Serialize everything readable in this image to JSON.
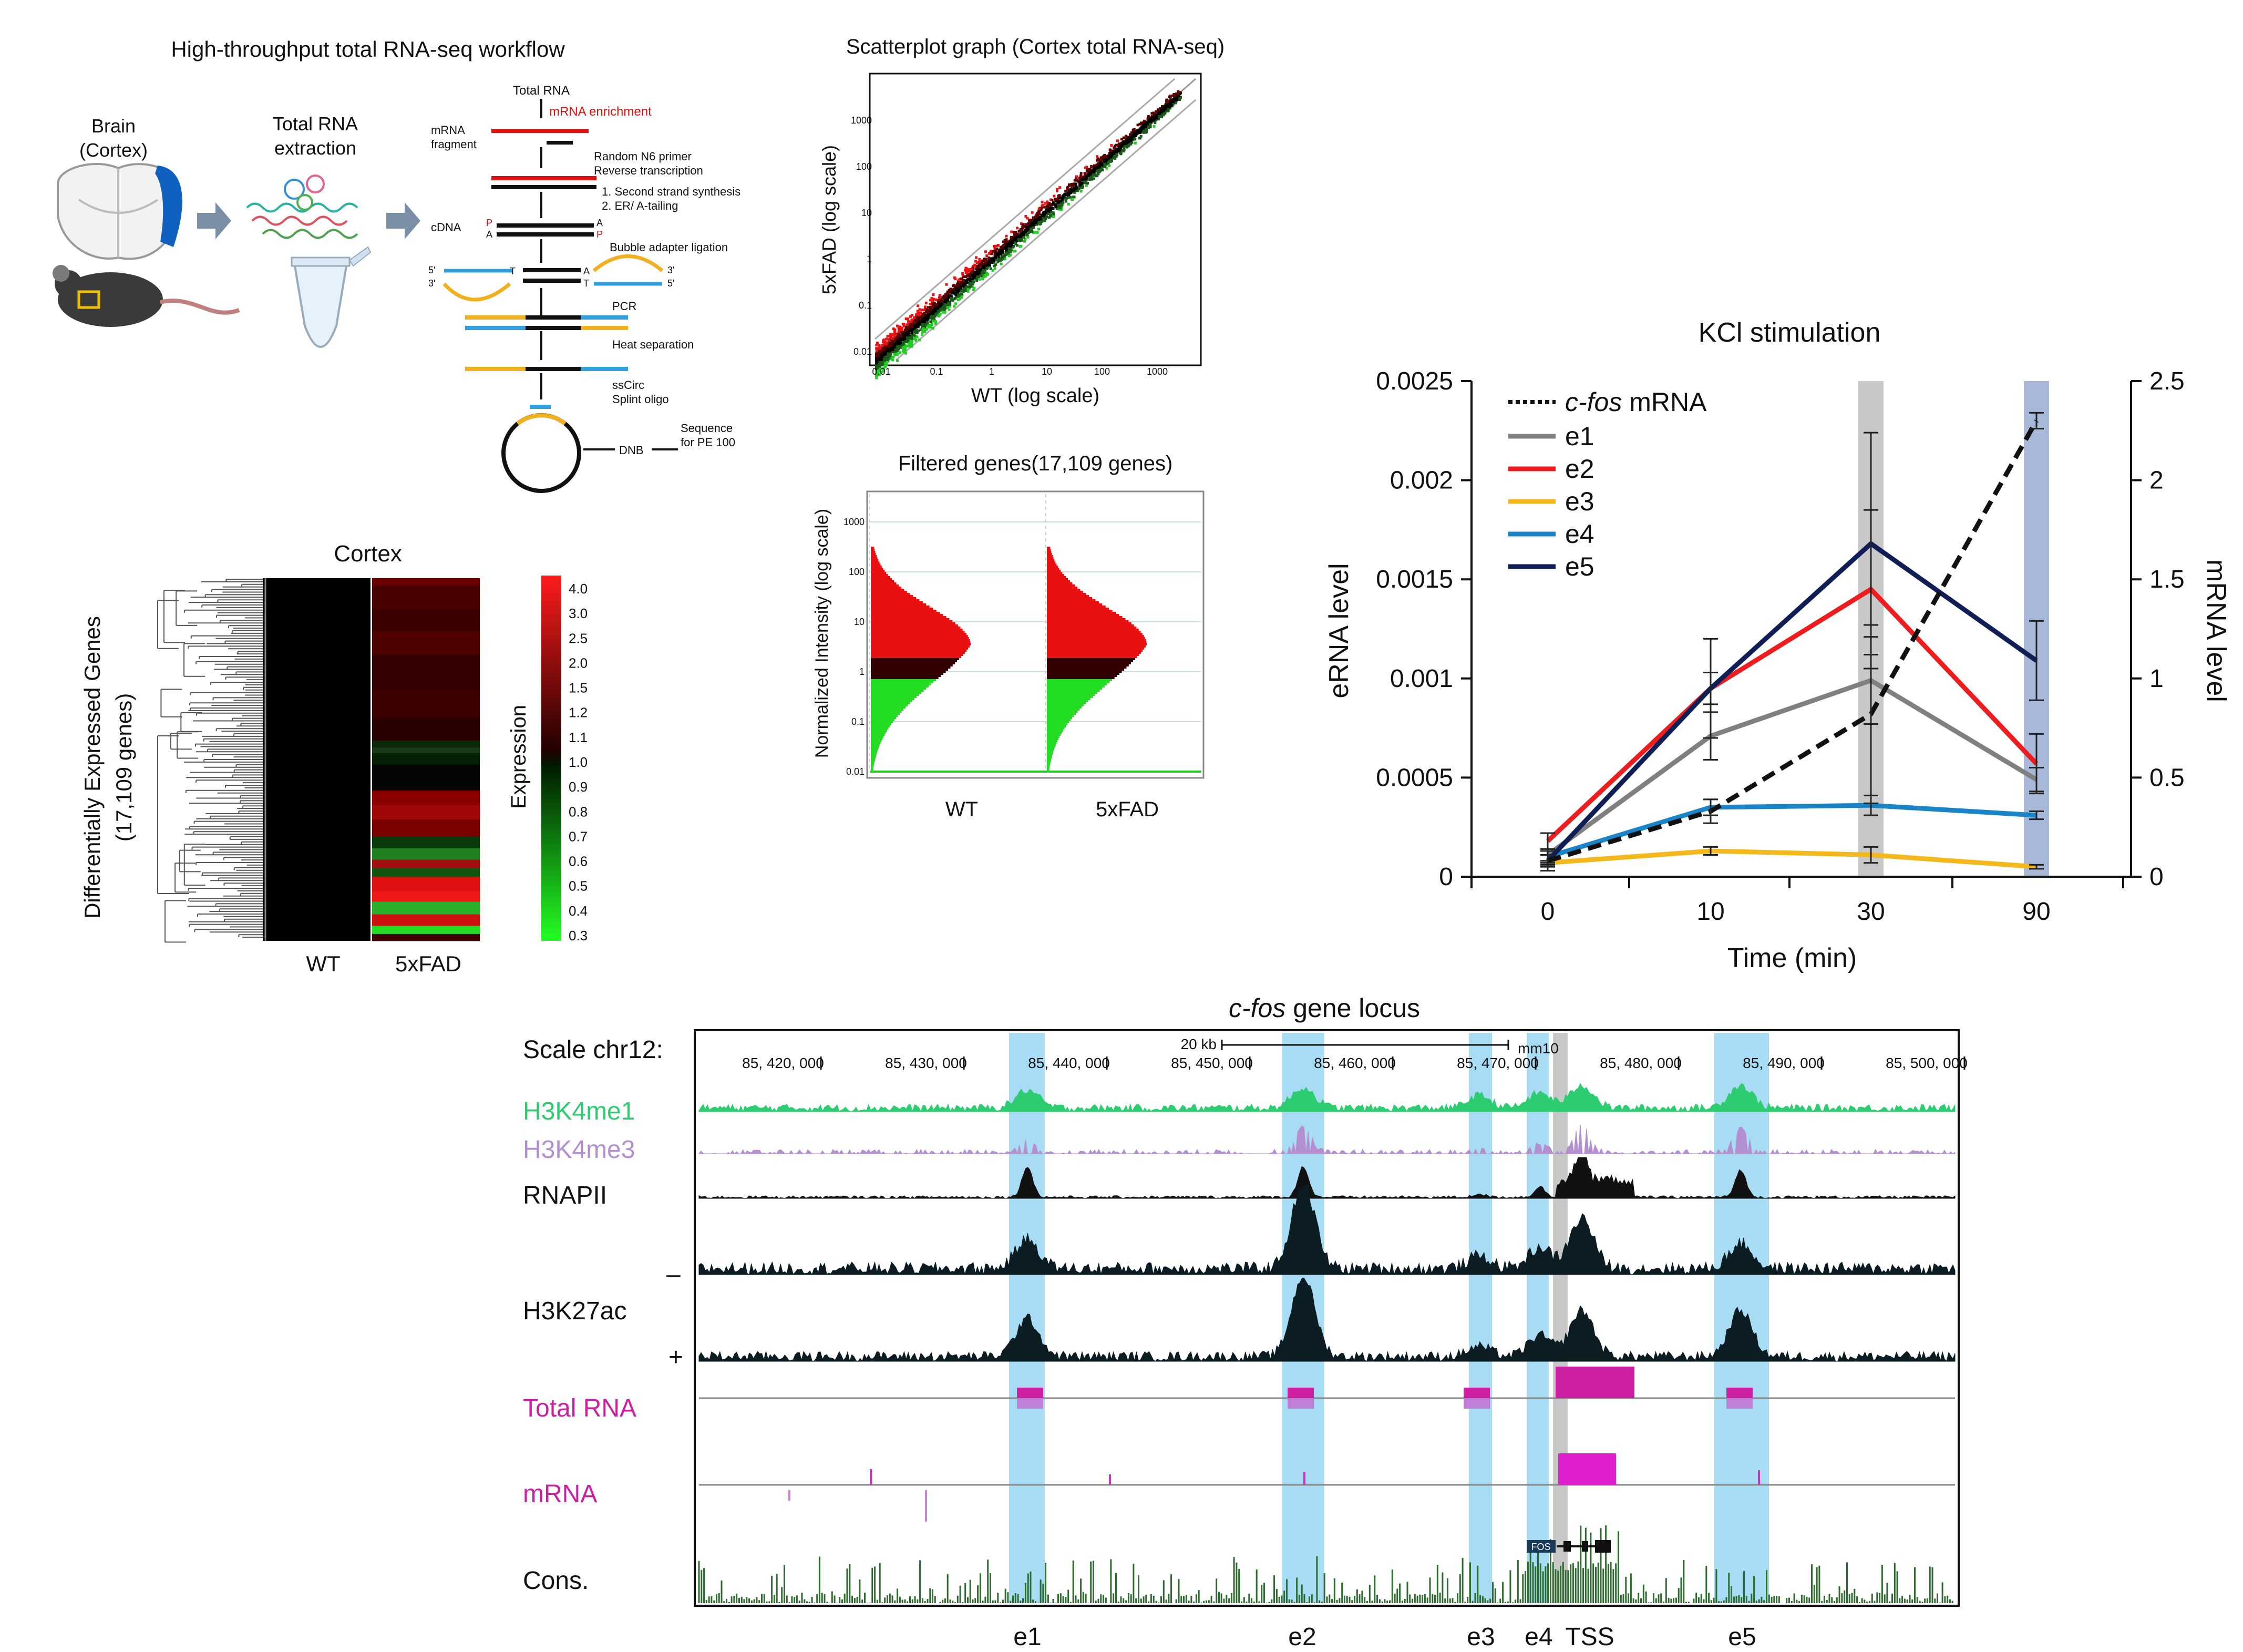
{
  "workflow": {
    "title": "High-throughput total RNA-seq workflow",
    "brain_label": [
      "Brain",
      "(Cortex)"
    ],
    "extraction_label": [
      "Total RNA",
      "extraction"
    ],
    "steps": {
      "total_rna": "Total RNA",
      "mrna_enrichment": "mRNA enrichment",
      "mrna_fragment": [
        "mRNA",
        "fragment"
      ],
      "random_primer": [
        "Random N6 primer",
        "Reverse transcription"
      ],
      "second_strand": [
        "1. Second strand synthesis",
        "2. ER/ A-tailing"
      ],
      "cdna": "cDNA",
      "bubble": "Bubble adapter ligation",
      "pcr": "PCR",
      "heat": "Heat separation",
      "sscirc": [
        "ssCirc",
        "Splint oligo"
      ],
      "dnb": "DNB",
      "sequence": [
        "Sequence",
        "for PE 100"
      ],
      "p": "P",
      "a": "A",
      "t": "T",
      "five_prime": "5'",
      "three_prime": "3'"
    }
  },
  "scatter": {
    "title": "Scatterplot graph (Cortex total RNA-seq)",
    "xlabel": "WT (log scale)",
    "ylabel": "5xFAD  (log scale)",
    "ticks_x": [
      "0.01",
      "0.1",
      "1",
      "10",
      "100",
      "1000"
    ],
    "ticks_y": [
      "0.01",
      "0.1",
      "1",
      "10",
      "100",
      "1000"
    ]
  },
  "filtered": {
    "title": "Filtered genes(17,109 genes)",
    "ylabel": "Normalized Intensity (log scale)",
    "groups": [
      "WT",
      "5xFAD"
    ],
    "ticks_y": [
      "0.01",
      "0.1",
      "1",
      "10",
      "100",
      "1000"
    ]
  },
  "heatmap": {
    "title": "Cortex",
    "ylabel": [
      "Differentially Expressed Genes",
      "(17,109 genes)"
    ],
    "columns": [
      "WT",
      "5xFAD"
    ],
    "scale_label": "Expression",
    "scale_ticks": [
      "4.0",
      "3.0",
      "2.5",
      "2.0",
      "1.5",
      "1.2",
      "1.1",
      "1.0",
      "0.9",
      "0.8",
      "0.7",
      "0.6",
      "0.5",
      "0.4",
      "0.3"
    ]
  },
  "chart_data": {
    "type": "line",
    "title": "KCl stimulation",
    "xlabel": "Time (min)",
    "ylabel": "eRNA level",
    "y2label": "mRNA level",
    "x": [
      0,
      10,
      30,
      90
    ],
    "ylim": [
      0,
      0.0025
    ],
    "y2lim": [
      0,
      2.5
    ],
    "yticks": [
      "0",
      "0.0005",
      "0.001",
      "0.0015",
      "0.002",
      "0.0025"
    ],
    "y2ticks": [
      "0",
      "0.5",
      "1",
      "1.5",
      "2",
      "2.5"
    ],
    "xticks": [
      "0",
      "10",
      "30",
      "90"
    ],
    "highlight_x": [
      30,
      90
    ],
    "legend_position": "top-left",
    "series": [
      {
        "name": "c-fos mRNA",
        "name_italic": "c-fos",
        "name_rest": " mRNA",
        "axis": "right",
        "color": "#111111",
        "dashed": true,
        "values": [
          0.08,
          0.33,
          0.82,
          2.3
        ],
        "err": [
          0.05,
          0.06,
          0.45,
          0.04
        ]
      },
      {
        "name": "e1",
        "axis": "left",
        "color": "#808080",
        "values": [
          0.00011,
          0.00071,
          0.00099,
          0.00049
        ],
        "err": [
          3e-05,
          0.00012,
          0.00022,
          6e-05
        ]
      },
      {
        "name": "e2",
        "axis": "left",
        "color": "#ee1c1c",
        "values": [
          0.00018,
          0.00095,
          0.00145,
          0.00057
        ],
        "err": [
          4e-05,
          0.00025,
          0.0004,
          0.00015
        ]
      },
      {
        "name": "e3",
        "axis": "left",
        "color": "#f5b81c",
        "values": [
          7e-05,
          0.00013,
          0.00011,
          5e-05
        ],
        "err": [
          1e-05,
          2e-05,
          4e-05,
          1e-05
        ]
      },
      {
        "name": "e4",
        "axis": "left",
        "color": "#1a84c8",
        "values": [
          0.0001,
          0.00035,
          0.00036,
          0.00031
        ],
        "err": [
          3e-05,
          4e-05,
          5e-05,
          2e-05
        ]
      },
      {
        "name": "e5",
        "axis": "left",
        "color": "#0f1f55",
        "values": [
          8e-05,
          0.00095,
          0.00168,
          0.00109
        ],
        "err": [
          3e-05,
          8e-05,
          0.00056,
          0.0002
        ]
      }
    ]
  },
  "locus": {
    "title_italic": "c-fos",
    "title_rest": " gene locus",
    "scale_label": "Scale chr12:",
    "scalebar_label": "20 kb",
    "assembly": "mm10",
    "coords": [
      "85, 420, 000",
      "85, 430, 000",
      "85, 440, 000",
      "85, 450, 000",
      "85, 460, 000",
      "85, 470, 000",
      "85, 480, 000",
      "85, 490, 000",
      "85, 500, 000"
    ],
    "tracks": [
      {
        "name": "H3K4me1",
        "color": "#2ecc71"
      },
      {
        "name": "H3K4me3",
        "color": "#b48fd0"
      },
      {
        "name": "RNAPII",
        "color": "#111111"
      },
      {
        "name": "H3K27ac",
        "color": "#0b1c22"
      },
      {
        "name": "Total RNA",
        "color": "#cc1fa3"
      },
      {
        "name": "mRNA",
        "color": "#cc1fa3"
      },
      {
        "name": "Cons.",
        "color": "#2d6a2d"
      }
    ],
    "minus": "–",
    "plus": "+",
    "gene": "FOS",
    "bottom_labels": [
      "e1",
      "e2",
      "e3",
      "e4",
      "TSS",
      "e5"
    ]
  }
}
